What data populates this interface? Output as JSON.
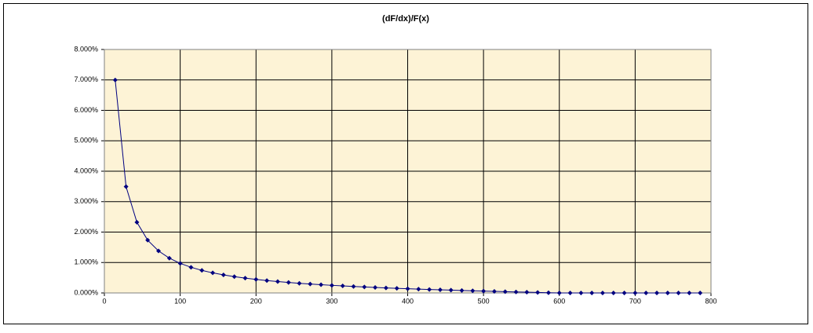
{
  "chart_data": {
    "type": "scatter",
    "title": "(dF/dx)/F(x)",
    "x": [
      14.3,
      28.6,
      42.9,
      57.1,
      71.4,
      85.7,
      100,
      114.3,
      128.6,
      142.9,
      157.1,
      171.4,
      185.7,
      200,
      214.3,
      228.6,
      242.9,
      257.1,
      271.4,
      285.7,
      300,
      314.3,
      328.6,
      342.9,
      357.1,
      371.4,
      385.7,
      400,
      414.3,
      428.6,
      442.9,
      457.1,
      471.4,
      485.7,
      500,
      514.3,
      528.6,
      542.9,
      557.1,
      571.4,
      585.7,
      600,
      614.3,
      628.6,
      642.9,
      657.1,
      671.4,
      685.7,
      700,
      714.3,
      728.6,
      742.9,
      757.1,
      771.4,
      785.7
    ],
    "series": [
      {
        "color": "#000080",
        "values": [
          6.996,
          3.492,
          2.321,
          1.734,
          1.38,
          1.143,
          0.972,
          0.843,
          0.742,
          0.66,
          0.593,
          0.536,
          0.487,
          0.444,
          0.407,
          0.374,
          0.344,
          0.317,
          0.293,
          0.271,
          0.25,
          0.231,
          0.213,
          0.196,
          0.181,
          0.166,
          0.152,
          0.139,
          0.126,
          0.114,
          0.103,
          0.092,
          0.081,
          0.071,
          0.061,
          0.052,
          0.042,
          0.033,
          0.025,
          0.016,
          0.008,
          0,
          0,
          0,
          0,
          0,
          0,
          0,
          0,
          0,
          0,
          0,
          0,
          0,
          0
        ]
      }
    ],
    "xlim": [
      0,
      800
    ],
    "xticks": [
      0,
      100,
      200,
      300,
      400,
      500,
      600,
      700,
      800
    ],
    "ylim": [
      0,
      8
    ],
    "yticks": [
      {
        "value": 0,
        "label": "0.000%"
      },
      {
        "value": 1,
        "label": "1.000%"
      },
      {
        "value": 2,
        "label": "2.000%"
      },
      {
        "value": 3,
        "label": "3.000%"
      },
      {
        "value": 4,
        "label": "4.000%"
      },
      {
        "value": 5,
        "label": "5.000%"
      },
      {
        "value": 6,
        "label": "6.000%"
      },
      {
        "value": 7,
        "label": "7.000%"
      },
      {
        "value": 8,
        "label": "8.000%"
      }
    ],
    "grid": true
  }
}
